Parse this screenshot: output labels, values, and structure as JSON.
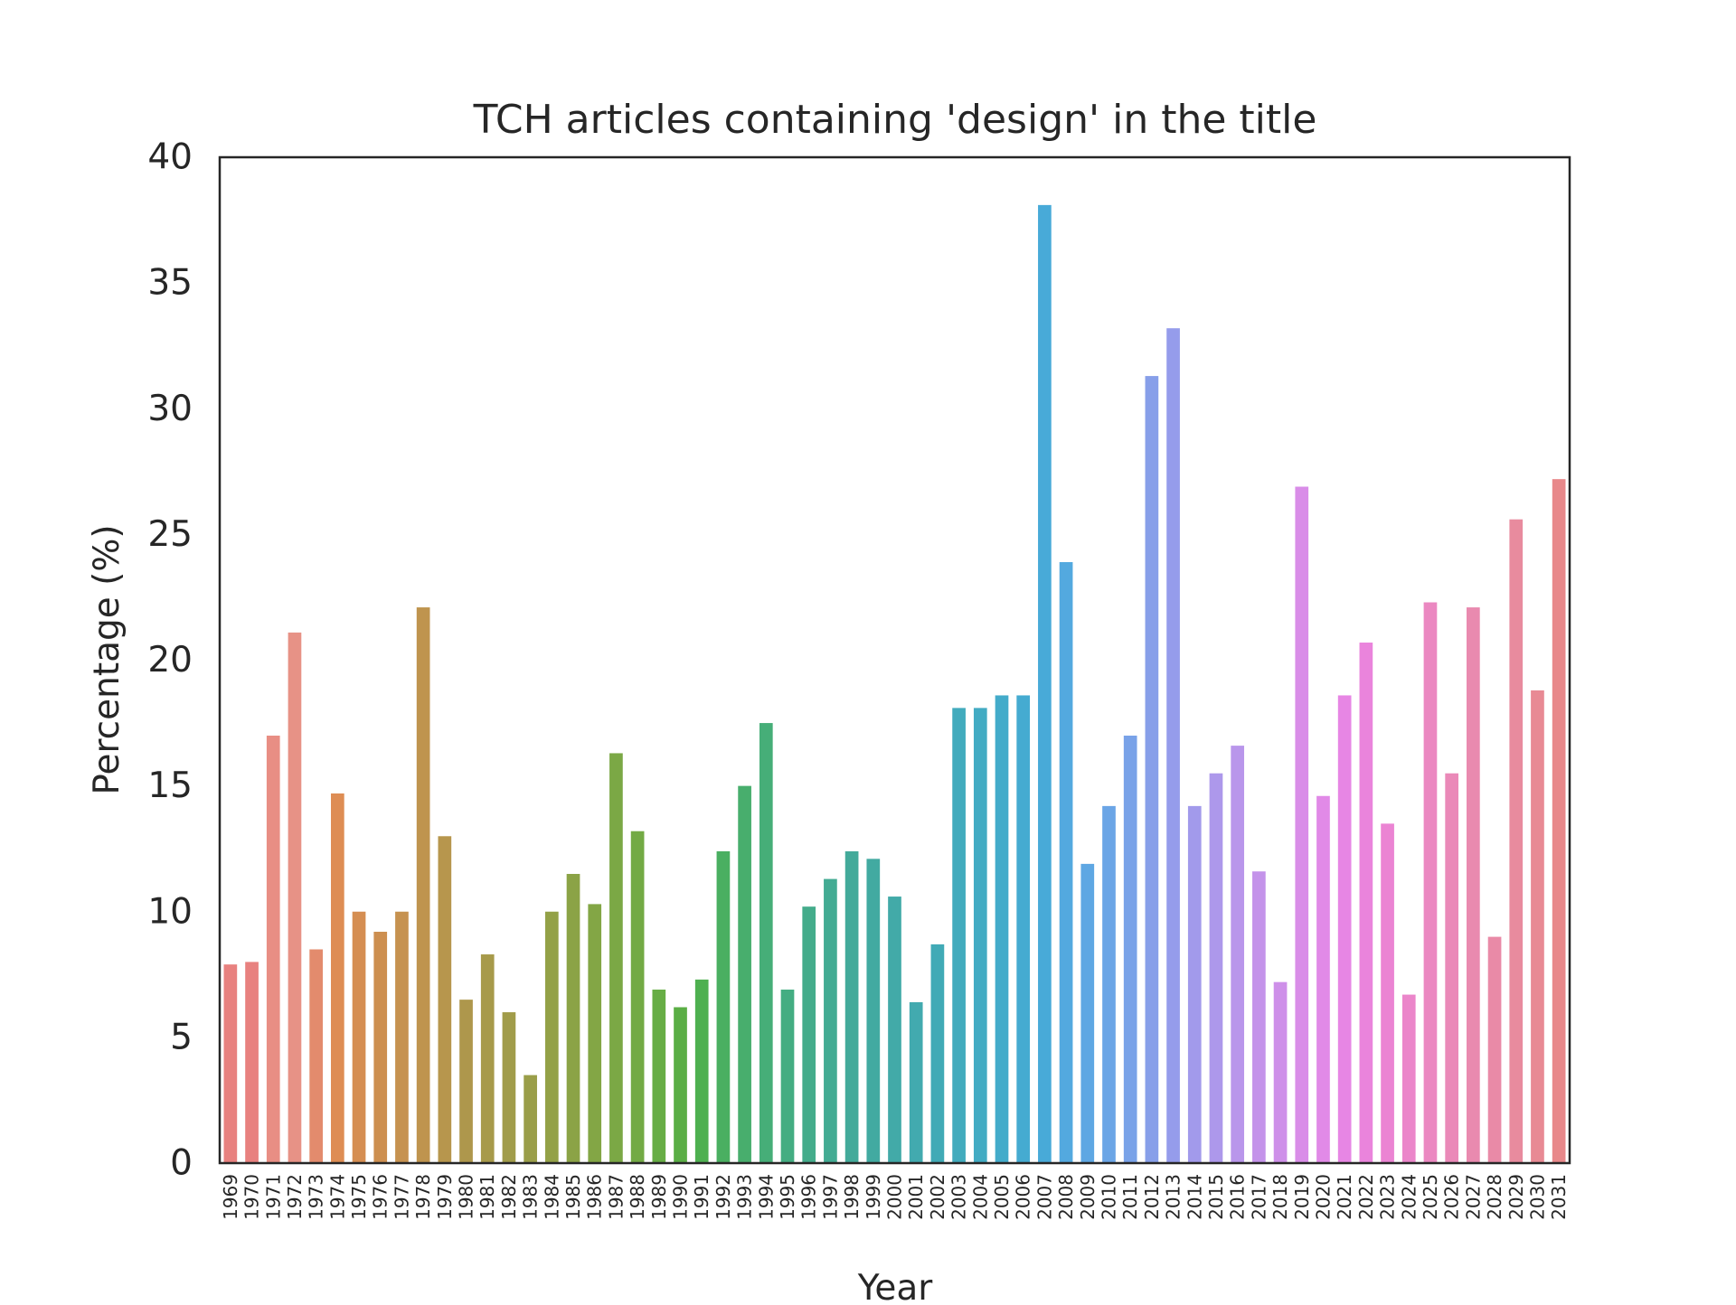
{
  "chart_data": {
    "type": "bar",
    "title": "TCH articles containing 'design' in the title",
    "xlabel": "Year",
    "ylabel": "Percentage (%)",
    "ylim": [
      0,
      40
    ],
    "yticks": [
      0,
      5,
      10,
      15,
      20,
      25,
      30,
      35,
      40
    ],
    "grid": false,
    "legend": "none",
    "categories": [
      "1969",
      "1970",
      "1971",
      "1972",
      "1973",
      "1974",
      "1975",
      "1976",
      "1977",
      "1978",
      "1979",
      "1980",
      "1981",
      "1982",
      "1983",
      "1984",
      "1985",
      "1986",
      "1987",
      "1988",
      "1989",
      "1990",
      "1991",
      "1992",
      "1993",
      "1994",
      "1995",
      "1996",
      "1997",
      "1998",
      "1999",
      "2000",
      "2001",
      "2002",
      "2003",
      "2004",
      "2005",
      "2006",
      "2007",
      "2008",
      "2009",
      "2010",
      "2011",
      "2012",
      "2013",
      "2014",
      "2015",
      "2016",
      "2017",
      "2018",
      "2019",
      "2020",
      "2021",
      "2022",
      "2023",
      "2024",
      "2025",
      "2026",
      "2027",
      "2028",
      "2029",
      "2030",
      "2031"
    ],
    "values": [
      7.9,
      8.0,
      17.0,
      21.1,
      8.5,
      14.7,
      10.0,
      9.2,
      10.0,
      22.1,
      13.0,
      6.5,
      8.3,
      6.0,
      3.5,
      10.0,
      11.5,
      10.3,
      16.3,
      13.2,
      6.9,
      6.2,
      7.3,
      12.4,
      15.0,
      17.5,
      6.9,
      10.2,
      11.3,
      12.4,
      12.1,
      10.6,
      6.4,
      8.7,
      18.1,
      18.1,
      18.6,
      18.6,
      38.1,
      23.9,
      11.9,
      14.2,
      17.0,
      31.3,
      33.2,
      14.2,
      15.5,
      16.6,
      11.6,
      7.2,
      26.9,
      14.6,
      18.6,
      20.7,
      13.5,
      6.7,
      22.3,
      15.5,
      22.1,
      9.0,
      25.6,
      18.8,
      27.2
    ],
    "colors": [
      "#e8817f",
      "#e8817f",
      "#e88e84",
      "#e79286",
      "#e38b6d",
      "#de8d54",
      "#d58e52",
      "#cd8f50",
      "#c69250",
      "#bf944e",
      "#b7964d",
      "#ae974c",
      "#a79a4a",
      "#a19c4a",
      "#9a9e49",
      "#93a147",
      "#8ba346",
      "#83a645",
      "#7ba845",
      "#73aa45",
      "#67ad45",
      "#5aae45",
      "#4eb050",
      "#4aaf61",
      "#48ae6d",
      "#46ae78",
      "#44ad82",
      "#44ac8b",
      "#43ab93",
      "#43aa9a",
      "#42aaa1",
      "#42aaa8",
      "#42aaaf",
      "#41aab6",
      "#42abbd",
      "#42abc3",
      "#43abca",
      "#45abd1",
      "#48aad8",
      "#53a9df",
      "#5ea7e3",
      "#6ba5e6",
      "#79a2e8",
      "#879fe9",
      "#959ceb",
      "#a29aeb",
      "#ad98eb",
      "#b996eb",
      "#c493ea",
      "#ce90e9",
      "#d98de8",
      "#e18ae7",
      "#e786e4",
      "#ea84dc",
      "#eb84d3",
      "#eb86ca",
      "#eb88c1",
      "#ea89b8",
      "#e98aaf",
      "#e98aa7",
      "#e88b9e",
      "#e88a94",
      "#e8888a"
    ]
  }
}
